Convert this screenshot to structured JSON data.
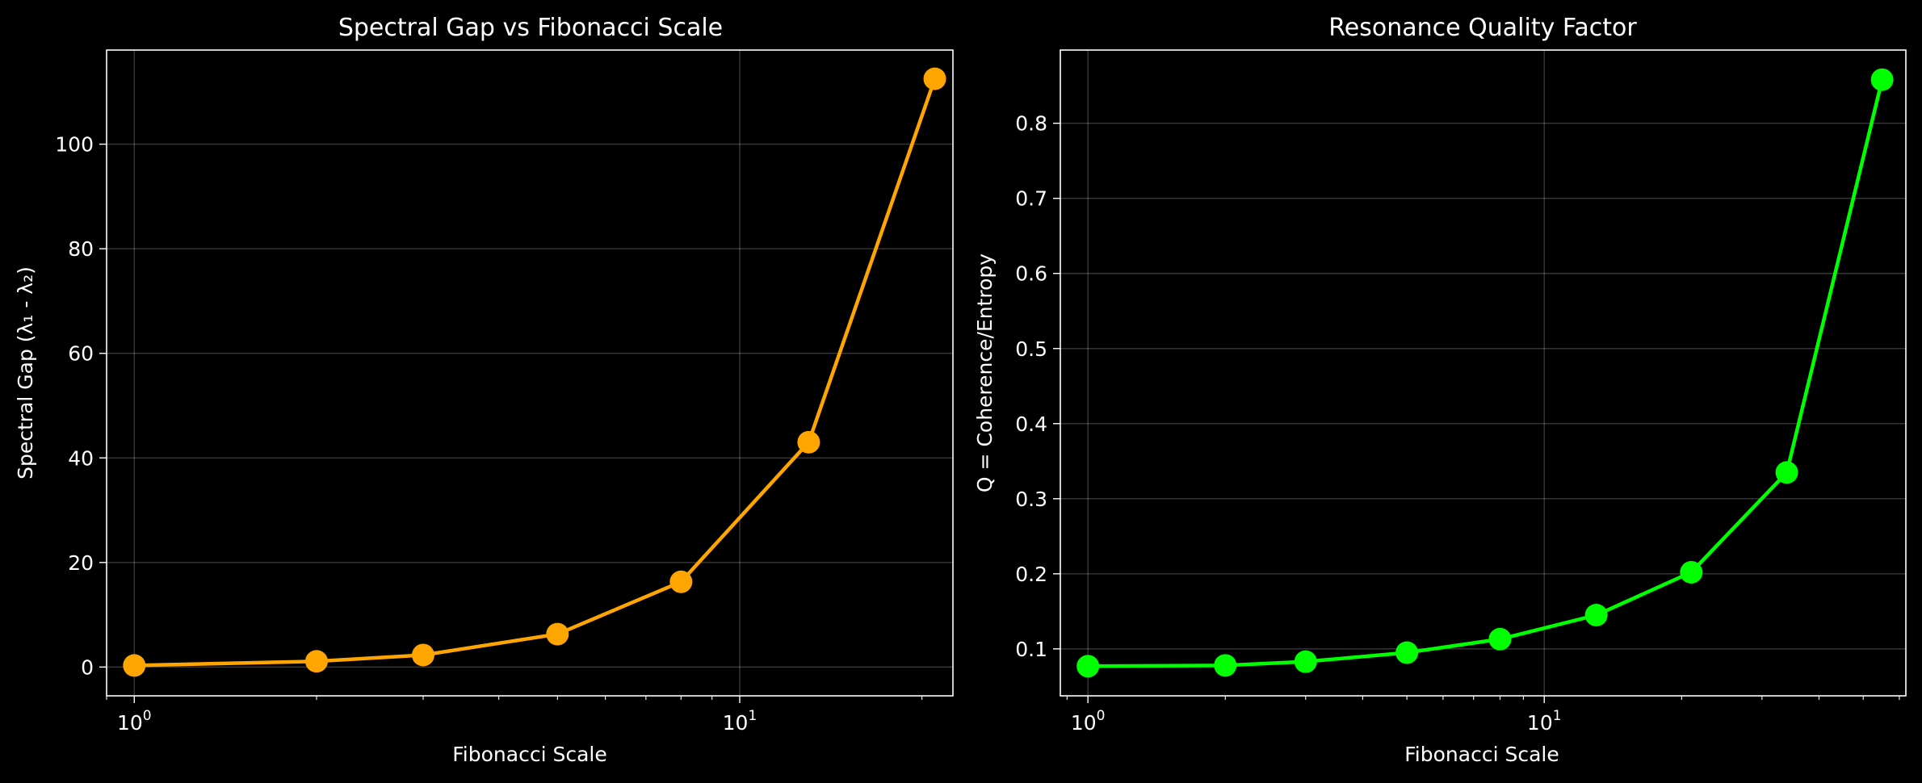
{
  "chart_data": [
    {
      "type": "line",
      "title": "Spectral Gap vs Fibonacci Scale",
      "xlabel": "Fibonacci Scale",
      "ylabel": "Spectral Gap (λ₁ - λ₂)",
      "xscale": "log",
      "xlim": [
        0.9,
        22.5
      ],
      "ylim": [
        -5.5,
        118
      ],
      "grid": true,
      "color": "#FFA500",
      "x": [
        1,
        2,
        3,
        5,
        8,
        13,
        21
      ],
      "y": [
        0.3,
        1.1,
        2.3,
        6.3,
        16.3,
        43.0,
        112.5
      ],
      "x_ticks": [
        {
          "value": 1,
          "base": "10",
          "exp": "0"
        },
        {
          "value": 10,
          "base": "10",
          "exp": "1"
        }
      ],
      "y_ticks": [
        {
          "value": 0,
          "label": "0"
        },
        {
          "value": 20,
          "label": "20"
        },
        {
          "value": 40,
          "label": "40"
        },
        {
          "value": 60,
          "label": "60"
        },
        {
          "value": 80,
          "label": "80"
        },
        {
          "value": 100,
          "label": "100"
        }
      ]
    },
    {
      "type": "line",
      "title": "Resonance Quality Factor",
      "xlabel": "Fibonacci Scale",
      "ylabel": "Q = Coherence/Entropy",
      "xscale": "log",
      "xlim": [
        0.87,
        62
      ],
      "ylim": [
        0.0375,
        0.8975
      ],
      "grid": true,
      "color": "#00FF00",
      "x": [
        1,
        2,
        3,
        5,
        8,
        13,
        21,
        34,
        55
      ],
      "y": [
        0.077,
        0.078,
        0.083,
        0.095,
        0.113,
        0.145,
        0.202,
        0.335,
        0.858
      ],
      "x_ticks": [
        {
          "value": 1,
          "base": "10",
          "exp": "0"
        },
        {
          "value": 10,
          "base": "10",
          "exp": "1"
        }
      ],
      "y_ticks": [
        {
          "value": 0.1,
          "label": "0.1"
        },
        {
          "value": 0.2,
          "label": "0.2"
        },
        {
          "value": 0.3,
          "label": "0.3"
        },
        {
          "value": 0.4,
          "label": "0.4"
        },
        {
          "value": 0.5,
          "label": "0.5"
        },
        {
          "value": 0.6,
          "label": "0.6"
        },
        {
          "value": 0.7,
          "label": "0.7"
        },
        {
          "value": 0.8,
          "label": "0.8"
        }
      ]
    }
  ]
}
